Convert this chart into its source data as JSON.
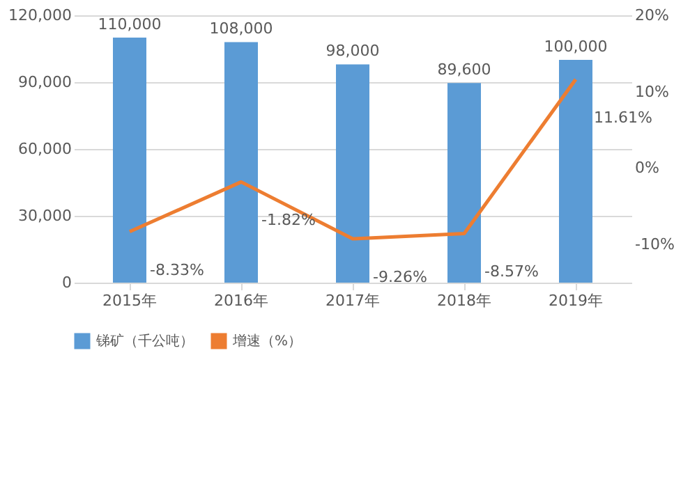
{
  "chart_data": {
    "type": "bar",
    "categories": [
      "2015年",
      "2016年",
      "2017年",
      "2018年",
      "2019年"
    ],
    "series": [
      {
        "name": "锑矿（千公吨）",
        "color": "#5b9bd5",
        "values": [
          110000,
          108000,
          98000,
          89600,
          100000
        ],
        "value_labels": [
          "110,000",
          "108,000",
          "98,000",
          "89,600",
          "100,000"
        ]
      },
      {
        "name": "增速（%）",
        "type": "line",
        "axis": "y2",
        "color": "#ed7d31",
        "values": [
          -8.33,
          -1.82,
          -9.26,
          -8.57,
          11.61
        ],
        "value_labels": [
          "-8.33%",
          "-1.82%",
          "-9.26%",
          "-8.57%",
          "11.61%"
        ]
      }
    ],
    "ylim": [
      0,
      120000
    ],
    "yticks": [
      {
        "value": 0,
        "label": "0"
      },
      {
        "value": 30000,
        "label": "30,000"
      },
      {
        "value": 60000,
        "label": "60,000"
      },
      {
        "value": 90000,
        "label": "90,000"
      },
      {
        "value": 120000,
        "label": "120,000"
      }
    ],
    "y2lim": [
      -15,
      20
    ],
    "y2ticks": [
      {
        "value": -10,
        "label": "-10%"
      },
      {
        "value": 0,
        "label": "0%"
      },
      {
        "value": 10,
        "label": "10%"
      },
      {
        "value": 20,
        "label": "20%"
      }
    ],
    "grid": "y",
    "legend": "bottom",
    "marker": "none",
    "line_style": "solid"
  }
}
